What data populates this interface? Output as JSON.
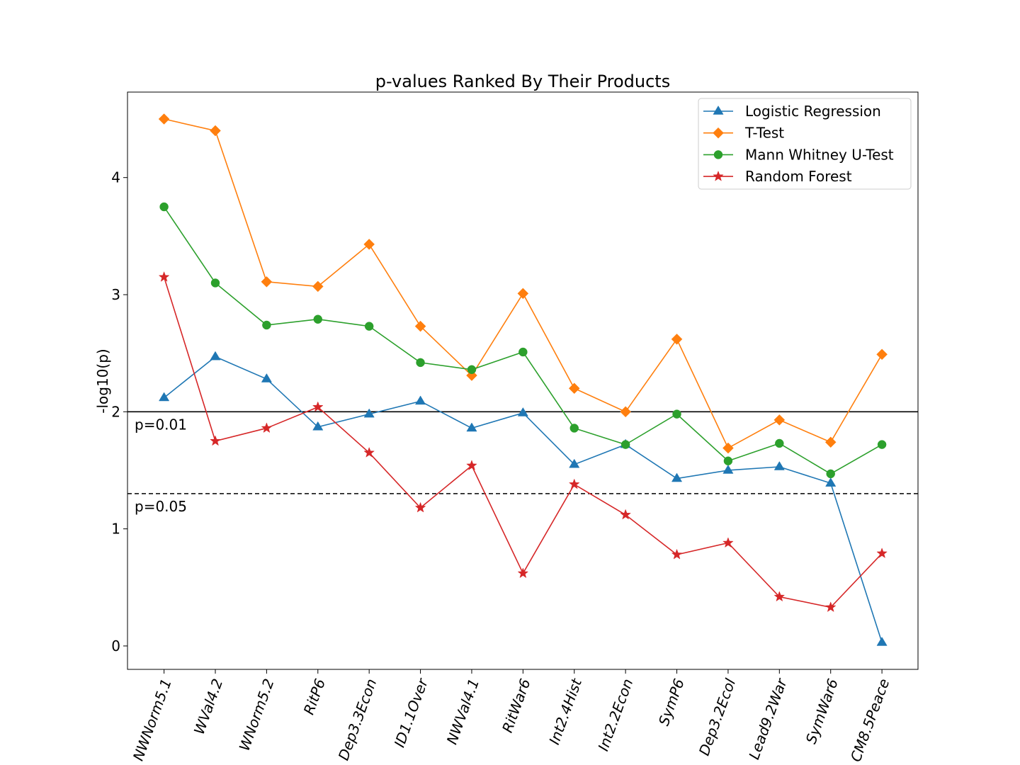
{
  "chart_data": {
    "type": "line",
    "title": "p-values Ranked By Their Products",
    "xlabel": "",
    "ylabel": "-log10(p)",
    "ylim": [
      -0.2,
      4.73
    ],
    "yticks": [
      0,
      1,
      2,
      3,
      4
    ],
    "grid": false,
    "legend_position": "top-right",
    "categories": [
      "NWNorm5.1",
      "WVal4.2",
      "WNorm5.2",
      "RitP6",
      "Dep3.3Econ",
      "ID1.1Over",
      "NWVal4.1",
      "RitWar6",
      "Int2.4Hist",
      "Int2.2Econ",
      "SymP6",
      "Dep3.2Ecol",
      "Lead9.2War",
      "SymWar6",
      "CM8.5Peace"
    ],
    "series": [
      {
        "name": "Logistic Regression",
        "color": "#1f77b4",
        "marker": "triangle",
        "values": [
          2.12,
          2.47,
          2.28,
          1.87,
          1.98,
          2.09,
          1.86,
          1.99,
          1.55,
          1.72,
          1.43,
          1.5,
          1.53,
          1.39,
          0.03
        ]
      },
      {
        "name": "T-Test",
        "color": "#ff7f0e",
        "marker": "diamond",
        "values": [
          4.5,
          4.4,
          3.11,
          3.07,
          3.43,
          2.73,
          2.31,
          3.01,
          2.2,
          2.0,
          2.62,
          1.69,
          1.93,
          1.74,
          2.49
        ]
      },
      {
        "name": "Mann Whitney U-Test",
        "color": "#2ca02c",
        "marker": "circle",
        "values": [
          3.75,
          3.1,
          2.74,
          2.79,
          2.73,
          2.42,
          2.36,
          2.51,
          1.86,
          1.72,
          1.98,
          1.58,
          1.73,
          1.47,
          1.72
        ]
      },
      {
        "name": "Random Forest",
        "color": "#d62728",
        "marker": "star",
        "values": [
          3.15,
          1.75,
          1.86,
          2.04,
          1.65,
          1.18,
          1.54,
          0.62,
          1.38,
          1.12,
          0.78,
          0.88,
          0.42,
          0.33,
          0.79
        ]
      }
    ],
    "reference_lines": [
      {
        "value": 2.0,
        "label": "p=0.01",
        "style": "solid"
      },
      {
        "value": 1.301,
        "label": "p=0.05",
        "style": "dashed"
      }
    ]
  }
}
